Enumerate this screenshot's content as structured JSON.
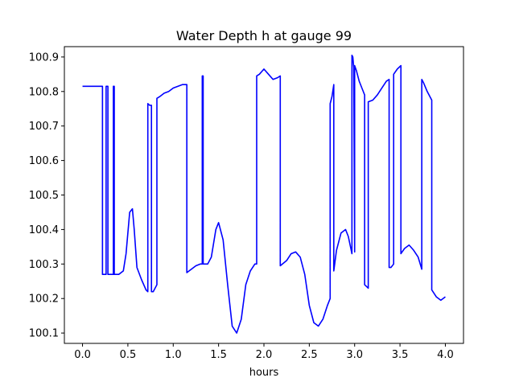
{
  "chart_data": {
    "type": "line",
    "title": "Water Depth h at gauge 99",
    "xlabel": "hours",
    "ylabel": "",
    "xlim": [
      -0.2,
      4.2
    ],
    "ylim": [
      100.07,
      100.93
    ],
    "xticks": [
      0,
      0.5,
      1,
      1.5,
      2,
      2.5,
      3,
      3.5,
      4
    ],
    "xtick_labels": [
      "0.0",
      "0.5",
      "1.0",
      "1.5",
      "2.0",
      "2.5",
      "3.0",
      "3.5",
      "4.0"
    ],
    "yticks": [
      100.1,
      100.2,
      100.3,
      100.4,
      100.5,
      100.6,
      100.7,
      100.8,
      100.9
    ],
    "ytick_labels": [
      "100.1",
      "100.2",
      "100.3",
      "100.4",
      "100.5",
      "100.6",
      "100.7",
      "100.8",
      "100.9"
    ],
    "grid": false,
    "series": [
      {
        "color": "#0000ff",
        "x": [
          0.0,
          0.22,
          0.22,
          0.26,
          0.26,
          0.28,
          0.28,
          0.34,
          0.34,
          0.35,
          0.35,
          0.4,
          0.45,
          0.48,
          0.52,
          0.55,
          0.57,
          0.6,
          0.65,
          0.7,
          0.72,
          0.72,
          0.74,
          0.76,
          0.76,
          0.78,
          0.82,
          0.82,
          0.85,
          0.9,
          0.95,
          1.0,
          1.05,
          1.1,
          1.15,
          1.15,
          1.2,
          1.25,
          1.3,
          1.32,
          1.32,
          1.33,
          1.33,
          1.38,
          1.42,
          1.47,
          1.5,
          1.55,
          1.6,
          1.65,
          1.7,
          1.75,
          1.8,
          1.85,
          1.9,
          1.92,
          1.92,
          1.95,
          2.0,
          2.05,
          2.1,
          2.15,
          2.18,
          2.18,
          2.25,
          2.3,
          2.35,
          2.4,
          2.45,
          2.5,
          2.55,
          2.6,
          2.65,
          2.7,
          2.73,
          2.73,
          2.75,
          2.77,
          2.77,
          2.8,
          2.85,
          2.9,
          2.93,
          2.95,
          2.97,
          2.97,
          2.98,
          2.99,
          3.0,
          3.0,
          3.02,
          3.05,
          3.08,
          3.11,
          3.11,
          3.15,
          3.15,
          3.2,
          3.25,
          3.3,
          3.35,
          3.38,
          3.38,
          3.4,
          3.43,
          3.43,
          3.47,
          3.51,
          3.51,
          3.55,
          3.6,
          3.65,
          3.7,
          3.74,
          3.74,
          3.76,
          3.8,
          3.85,
          3.85,
          3.9,
          3.95,
          4.0
        ],
        "y": [
          100.815,
          100.815,
          100.27,
          100.27,
          100.815,
          100.815,
          100.27,
          100.27,
          100.815,
          100.815,
          100.27,
          100.27,
          100.28,
          100.33,
          100.45,
          100.46,
          100.4,
          100.29,
          100.255,
          100.225,
          100.22,
          100.765,
          100.76,
          100.76,
          100.22,
          100.22,
          100.24,
          100.78,
          100.785,
          100.795,
          100.8,
          100.81,
          100.815,
          100.82,
          100.82,
          100.275,
          100.285,
          100.295,
          100.3,
          100.3,
          100.845,
          100.845,
          100.3,
          100.3,
          100.32,
          100.4,
          100.42,
          100.37,
          100.24,
          100.12,
          100.1,
          100.14,
          100.24,
          100.28,
          100.3,
          100.3,
          100.845,
          100.85,
          100.865,
          100.85,
          100.835,
          100.84,
          100.845,
          100.295,
          100.31,
          100.33,
          100.335,
          100.32,
          100.27,
          100.18,
          100.13,
          100.12,
          100.14,
          100.18,
          100.2,
          100.765,
          100.785,
          100.82,
          100.28,
          100.34,
          100.39,
          100.4,
          100.38,
          100.355,
          100.33,
          100.905,
          100.9,
          100.87,
          100.335,
          100.875,
          100.86,
          100.83,
          100.81,
          100.79,
          100.24,
          100.23,
          100.77,
          100.775,
          100.79,
          100.81,
          100.83,
          100.835,
          100.29,
          100.29,
          100.3,
          100.85,
          100.865,
          100.875,
          100.33,
          100.345,
          100.355,
          100.34,
          100.32,
          100.285,
          100.835,
          100.825,
          100.8,
          100.775,
          100.225,
          100.205,
          100.195,
          100.205
        ]
      }
    ]
  }
}
